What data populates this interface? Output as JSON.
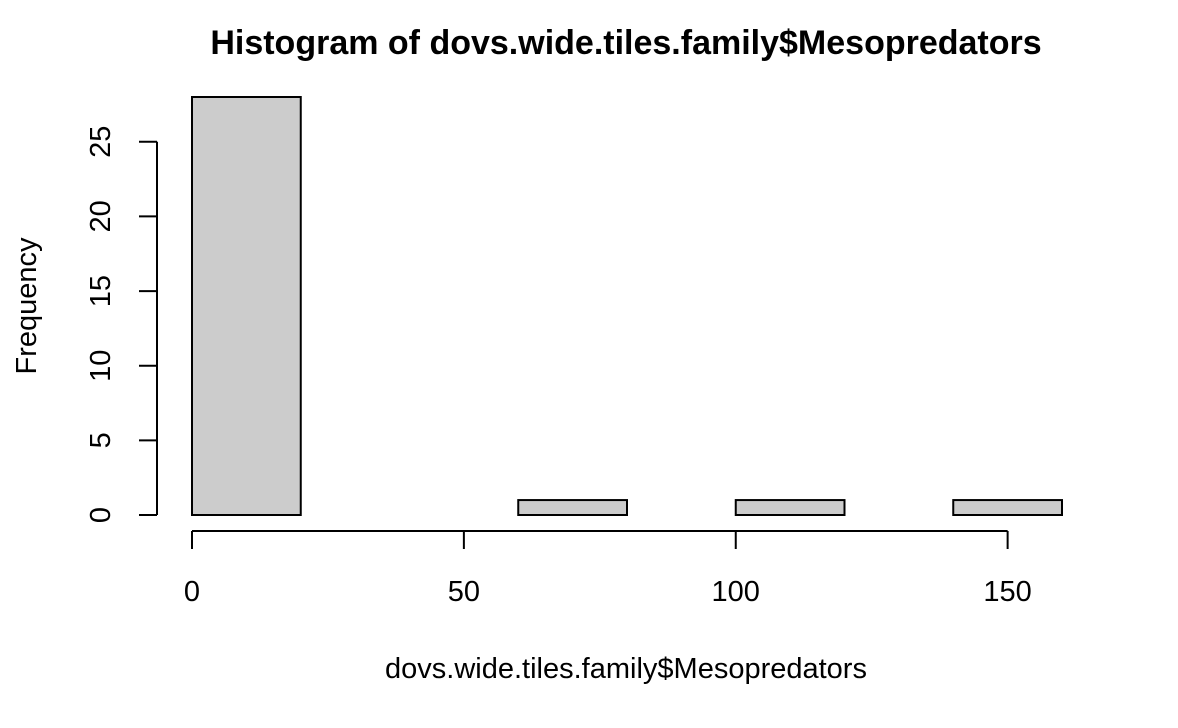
{
  "chart_data": {
    "type": "bar",
    "title": "Histogram of dovs.wide.tiles.family$Mesopredators",
    "xlabel": "dovs.wide.tiles.family$Mesopredators",
    "ylabel": "Frequency",
    "bins": [
      {
        "start": 0,
        "end": 20,
        "count": 28
      },
      {
        "start": 20,
        "end": 40,
        "count": 0
      },
      {
        "start": 40,
        "end": 60,
        "count": 0
      },
      {
        "start": 60,
        "end": 80,
        "count": 1
      },
      {
        "start": 80,
        "end": 100,
        "count": 0
      },
      {
        "start": 100,
        "end": 120,
        "count": 1
      },
      {
        "start": 120,
        "end": 140,
        "count": 0
      },
      {
        "start": 140,
        "end": 160,
        "count": 1
      }
    ],
    "x_ticks": [
      0,
      50,
      100,
      150
    ],
    "y_ticks": [
      0,
      5,
      10,
      15,
      20,
      25
    ],
    "xlim": [
      0,
      160
    ],
    "ylim": [
      0,
      28
    ],
    "grid": false,
    "bar_fill": "#CCCCCC",
    "bar_stroke": "#000000"
  }
}
